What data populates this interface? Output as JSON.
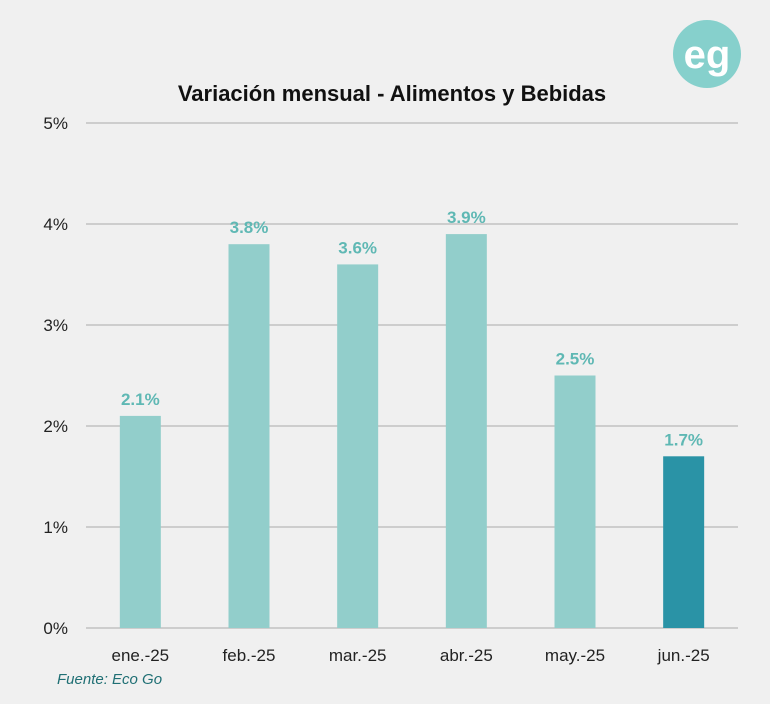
{
  "chart_data": {
    "type": "bar",
    "title": "Variación mensual - Alimentos y Bebidas",
    "categories": [
      "ene.-25",
      "feb.-25",
      "mar.-25",
      "abr.-25",
      "may.-25",
      "jun.-25"
    ],
    "values": [
      2.1,
      3.8,
      3.6,
      3.9,
      2.5,
      1.7
    ],
    "value_labels": [
      "2.1%",
      "3.8%",
      "3.6%",
      "3.9%",
      "2.5%",
      "1.7%"
    ],
    "yticks": [
      "0%",
      "1%",
      "2%",
      "3%",
      "4%",
      "5%"
    ],
    "ylim": [
      0,
      5
    ],
    "grid": true,
    "xlabel": "",
    "ylabel": "",
    "colors": {
      "bar": "#92cecb",
      "bar_highlight": "#2a93a6",
      "label": "#5fb8b4",
      "gridline": "#b8b8b8",
      "background": "#f0f0f0"
    },
    "highlight_index": 5
  },
  "source": "Fuente: Eco Go",
  "logo": {
    "text": "eg",
    "color": "#86d0cc"
  }
}
